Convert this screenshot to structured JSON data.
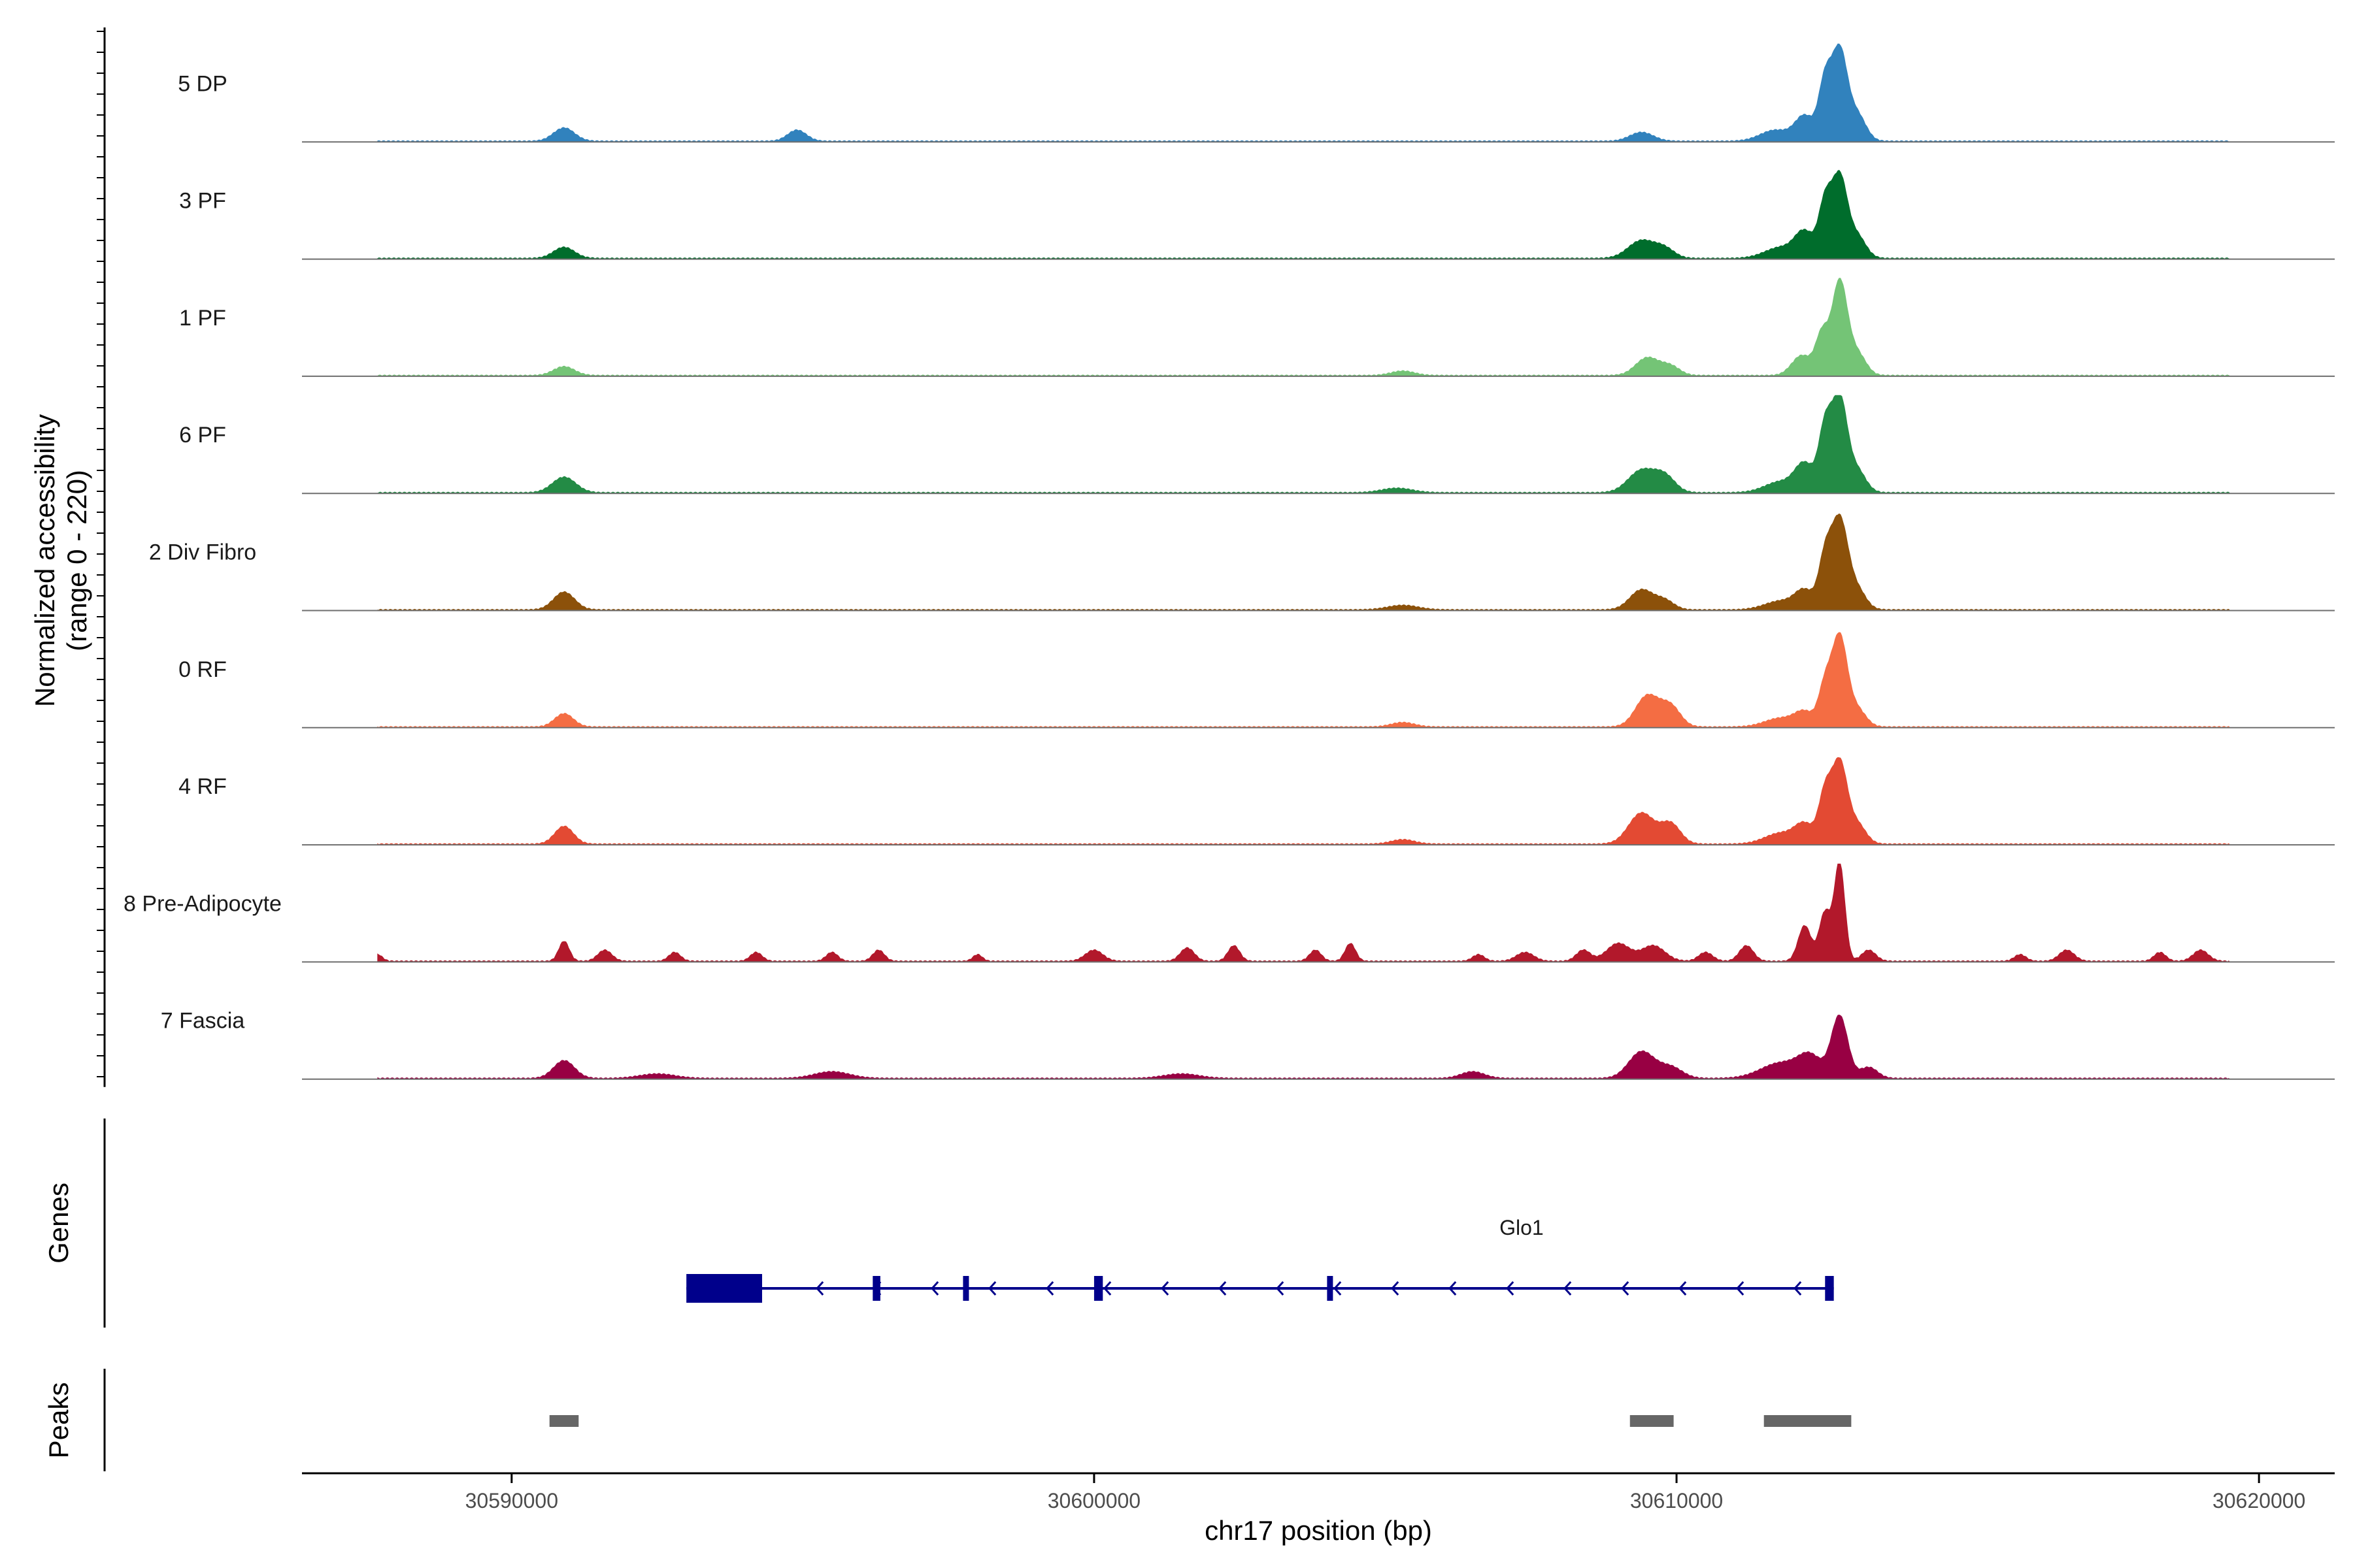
{
  "chart_data": {
    "type": "area",
    "region": {
      "chrom": "chr17",
      "start": 30586400,
      "end": 30621300
    },
    "xlabel": "chr17 position (bp)",
    "x_ticks": [
      30590000,
      30600000,
      30610000,
      30620000
    ],
    "x_tick_labels": [
      "30590000",
      "30600000",
      "30610000",
      "30620000"
    ],
    "ylabel_line1": "Normalized accessibility",
    "ylabel_line2": "(range 0 - 220)",
    "ylim": [
      0,
      220
    ],
    "series": [
      {
        "name": "5 DP",
        "color": "#3182bd",
        "peaks": [
          [
            30590900,
            30,
            180
          ],
          [
            30594900,
            25,
            160
          ],
          [
            30609400,
            20,
            200
          ],
          [
            30611700,
            25,
            260
          ],
          [
            30612200,
            55,
            160
          ],
          [
            30612550,
            130,
            110
          ],
          [
            30612800,
            200,
            130
          ],
          [
            30613100,
            60,
            150
          ]
        ]
      },
      {
        "name": "3 PF",
        "color": "#006d2c",
        "peaks": [
          [
            30590900,
            25,
            180
          ],
          [
            30609400,
            40,
            230
          ],
          [
            30609800,
            20,
            170
          ],
          [
            30611800,
            25,
            280
          ],
          [
            30612200,
            55,
            160
          ],
          [
            30612550,
            120,
            110
          ],
          [
            30612800,
            180,
            130
          ],
          [
            30613100,
            50,
            150
          ]
        ]
      },
      {
        "name": "1 PF",
        "color": "#74c476",
        "peaks": [
          [
            30590900,
            20,
            180
          ],
          [
            30605300,
            10,
            200
          ],
          [
            30609500,
            40,
            200
          ],
          [
            30609900,
            20,
            160
          ],
          [
            30612150,
            45,
            170
          ],
          [
            30612500,
            90,
            110
          ],
          [
            30612800,
            210,
            130
          ],
          [
            30613100,
            50,
            150
          ]
        ]
      },
      {
        "name": "6 PF",
        "color": "#238b45",
        "peaks": [
          [
            30590900,
            35,
            200
          ],
          [
            30605200,
            10,
            260
          ],
          [
            30609400,
            50,
            230
          ],
          [
            30609800,
            35,
            180
          ],
          [
            30611800,
            25,
            280
          ],
          [
            30612200,
            60,
            160
          ],
          [
            30612550,
            140,
            110
          ],
          [
            30612800,
            210,
            130
          ],
          [
            30613100,
            50,
            150
          ]
        ]
      },
      {
        "name": "2 Div Fibro",
        "color": "#8c510a",
        "peaks": [
          [
            30590900,
            40,
            180
          ],
          [
            30605300,
            10,
            260
          ],
          [
            30609400,
            45,
            200
          ],
          [
            30609800,
            20,
            160
          ],
          [
            30611800,
            20,
            280
          ],
          [
            30612200,
            40,
            160
          ],
          [
            30612550,
            110,
            110
          ],
          [
            30612800,
            200,
            140
          ],
          [
            30613100,
            45,
            150
          ]
        ]
      },
      {
        "name": "0 RF",
        "color": "#f46d43",
        "peaks": [
          [
            30590900,
            30,
            160
          ],
          [
            30605300,
            10,
            200
          ],
          [
            30609500,
            70,
            200
          ],
          [
            30609900,
            45,
            170
          ],
          [
            30611800,
            20,
            280
          ],
          [
            30612200,
            30,
            160
          ],
          [
            30612550,
            90,
            110
          ],
          [
            30612800,
            200,
            130
          ],
          [
            30613100,
            40,
            150
          ]
        ]
      },
      {
        "name": "4 RF",
        "color": "#e34a33",
        "peaks": [
          [
            30590900,
            40,
            160
          ],
          [
            30605300,
            10,
            200
          ],
          [
            30609400,
            70,
            220
          ],
          [
            30609900,
            45,
            170
          ],
          [
            30611800,
            25,
            280
          ],
          [
            30612200,
            40,
            160
          ],
          [
            30612550,
            110,
            110
          ],
          [
            30612800,
            180,
            130
          ],
          [
            30613100,
            45,
            150
          ]
        ]
      },
      {
        "name": "8 Pre-Adipocyte",
        "color": "#b2182b",
        "peaks": [
          [
            30587700,
            15,
            80
          ],
          [
            30590900,
            45,
            90
          ],
          [
            30591600,
            25,
            120
          ],
          [
            30592800,
            20,
            100
          ],
          [
            30594200,
            20,
            100
          ],
          [
            30595500,
            20,
            100
          ],
          [
            30596300,
            25,
            100
          ],
          [
            30598000,
            15,
            80
          ],
          [
            30600000,
            25,
            150
          ],
          [
            30601600,
            30,
            120
          ],
          [
            30602400,
            35,
            100
          ],
          [
            30603800,
            25,
            100
          ],
          [
            30604400,
            40,
            90
          ],
          [
            30606600,
            15,
            100
          ],
          [
            30607400,
            20,
            150
          ],
          [
            30608400,
            25,
            120
          ],
          [
            30609000,
            40,
            200
          ],
          [
            30609600,
            35,
            200
          ],
          [
            30610500,
            20,
            120
          ],
          [
            30611200,
            35,
            120
          ],
          [
            30612200,
            80,
            110
          ],
          [
            30612550,
            110,
            100
          ],
          [
            30612800,
            220,
            90
          ],
          [
            30613300,
            25,
            120
          ],
          [
            30615900,
            15,
            100
          ],
          [
            30616700,
            25,
            130
          ],
          [
            30618300,
            20,
            100
          ],
          [
            30619000,
            25,
            130
          ]
        ]
      },
      {
        "name": "7 Fascia",
        "color": "#980043",
        "peaks": [
          [
            30590900,
            40,
            180
          ],
          [
            30592500,
            10,
            300
          ],
          [
            30595500,
            15,
            300
          ],
          [
            30601500,
            10,
            300
          ],
          [
            30606500,
            15,
            200
          ],
          [
            30609400,
            60,
            220
          ],
          [
            30609900,
            25,
            200
          ],
          [
            30611800,
            35,
            350
          ],
          [
            30612300,
            45,
            200
          ],
          [
            30612800,
            140,
            140
          ],
          [
            30613300,
            25,
            150
          ]
        ]
      }
    ],
    "genes": [
      {
        "name": "Glo1",
        "strand": "-",
        "start": 30593000,
        "end": 30612700,
        "color": "#00008b",
        "exons": [
          [
            30593000,
            30594300
          ],
          [
            30596200,
            30596330
          ],
          [
            30597750,
            30597850
          ],
          [
            30600000,
            30600150
          ],
          [
            30604000,
            30604080
          ],
          [
            30612550,
            30612700
          ]
        ]
      }
    ],
    "peaks_track": [
      [
        30590650,
        30591150
      ],
      [
        30609200,
        30609950
      ],
      [
        30611500,
        30613000
      ]
    ],
    "track_titles": {
      "genes": "Genes",
      "peaks": "Peaks"
    },
    "peak_color": "#666666"
  }
}
